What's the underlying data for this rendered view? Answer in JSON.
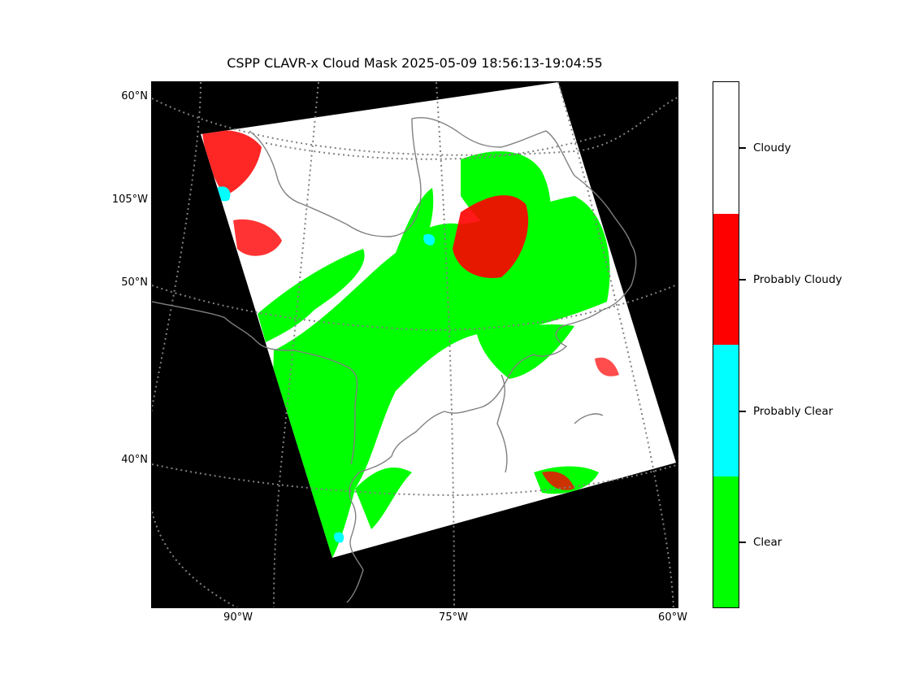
{
  "title": "CSPP CLAVR-x Cloud Mask 2025-05-09 18:56:13-19:04:55",
  "map": {
    "lat_labels": [
      "60°N",
      "105°W",
      "50°N",
      "40°N"
    ],
    "lon_labels": [
      "90°W",
      "75°W",
      "60°W"
    ],
    "colors": {
      "background": "#000000",
      "coastline": "#808080",
      "graticule": "#808080",
      "clear": "#00ff00",
      "probably_clear": "#00ffff",
      "probably_cloudy": "#ff0000",
      "cloudy": "#ffffff"
    }
  },
  "legend": {
    "categories": [
      {
        "label": "Clear",
        "color": "#00ff00"
      },
      {
        "label": "Probably Clear",
        "color": "#00ffff"
      },
      {
        "label": "Probably Cloudy",
        "color": "#ff0000"
      },
      {
        "label": "Cloudy",
        "color": "#ffffff"
      }
    ]
  }
}
